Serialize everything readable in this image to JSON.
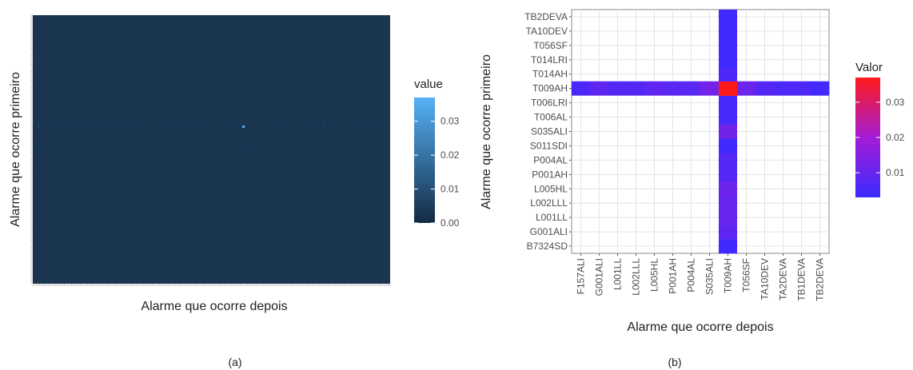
{
  "panels": {
    "a_caption": "(a)",
    "b_caption": "(b)"
  },
  "chart_data": [
    {
      "type": "heatmap",
      "panel": "a",
      "xlabel": "Alarme que ocorre depois",
      "ylabel": "Alarme que ocorre primeiro",
      "legend_title": "value",
      "color_scale": {
        "low": "#132b43",
        "high": "#56b1f7",
        "range": [
          0,
          0.037
        ]
      },
      "legend_ticks": [
        0.0,
        0.01,
        0.02,
        0.03
      ],
      "legend_tick_labels": [
        "0.00",
        "0.01",
        "0.02",
        "0.03"
      ],
      "background_value": 0.0,
      "highlight": {
        "row_value_max": 0.037,
        "note_hidden": ""
      }
    },
    {
      "type": "heatmap",
      "panel": "b",
      "xlabel": "Alarme que ocorre depois",
      "ylabel": "Alarme que ocorre primeiro",
      "legend_title": "Valor",
      "color_scale": {
        "low": "#3b2bff",
        "high": "#ff1a1a",
        "range": [
          0.003,
          0.037
        ]
      },
      "legend_ticks": [
        0.01,
        0.02,
        0.03
      ],
      "legend_tick_labels": [
        "0.01",
        "0.02",
        "0.03"
      ],
      "x_categories": [
        "F157ALI",
        "G001ALI",
        "L001LL",
        "L002LLL",
        "L005HL",
        "P001AH",
        "P004AL",
        "S035ALI",
        "T009AH",
        "T056SF",
        "TA10DEV",
        "TA2DEVA",
        "TB1DEVA",
        "TB2DEVA"
      ],
      "y_categories": [
        "B7324SD",
        "G001ALI",
        "L001LL",
        "L002LLL",
        "L005HL",
        "P001AH",
        "P004AL",
        "S011SDI",
        "S035ALI",
        "T006AL",
        "T006LRI",
        "T009AH",
        "T014AH",
        "T014LRI",
        "T056SF",
        "TA10DEV",
        "TB2DEVA"
      ],
      "highlight_row": "T009AH",
      "highlight_col": "T009AH",
      "row_values": [
        0.006,
        0.009,
        0.007,
        0.007,
        0.009,
        0.008,
        0.008,
        0.012,
        0.037,
        0.011,
        0.007,
        0.006,
        0.006,
        0.004
      ],
      "col_values": [
        0.004,
        0.009,
        0.01,
        0.01,
        0.011,
        0.007,
        0.007,
        0.004,
        0.012,
        0.005,
        0.005,
        0.037,
        0.006,
        0.004,
        0.004,
        0.004,
        0.004
      ]
    }
  ]
}
